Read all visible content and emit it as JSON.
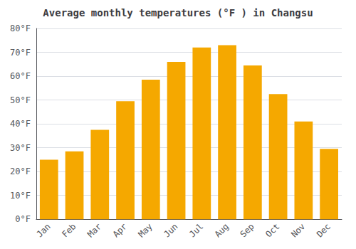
{
  "chart_data": {
    "type": "bar",
    "title": "Average monthly temperatures (°F ) in Changsu",
    "categories": [
      "Jan",
      "Feb",
      "Mar",
      "Apr",
      "May",
      "Jun",
      "Jul",
      "Aug",
      "Sep",
      "Oct",
      "Nov",
      "Dec"
    ],
    "values": [
      25,
      28.5,
      37.5,
      49.5,
      58.5,
      66,
      72,
      73,
      64.5,
      52.5,
      41,
      29.5
    ],
    "color": "#F5A800",
    "ylim": [
      0,
      80
    ],
    "yticks": [
      {
        "value": 0,
        "label": "0°F"
      },
      {
        "value": 10,
        "label": "10°F"
      },
      {
        "value": 20,
        "label": "20°F"
      },
      {
        "value": 30,
        "label": "30°F"
      },
      {
        "value": 40,
        "label": "40°F"
      },
      {
        "value": 50,
        "label": "50°F"
      },
      {
        "value": 60,
        "label": "60°F"
      },
      {
        "value": 70,
        "label": "70°F"
      },
      {
        "value": 80,
        "label": "80°F"
      }
    ],
    "grid": true
  }
}
